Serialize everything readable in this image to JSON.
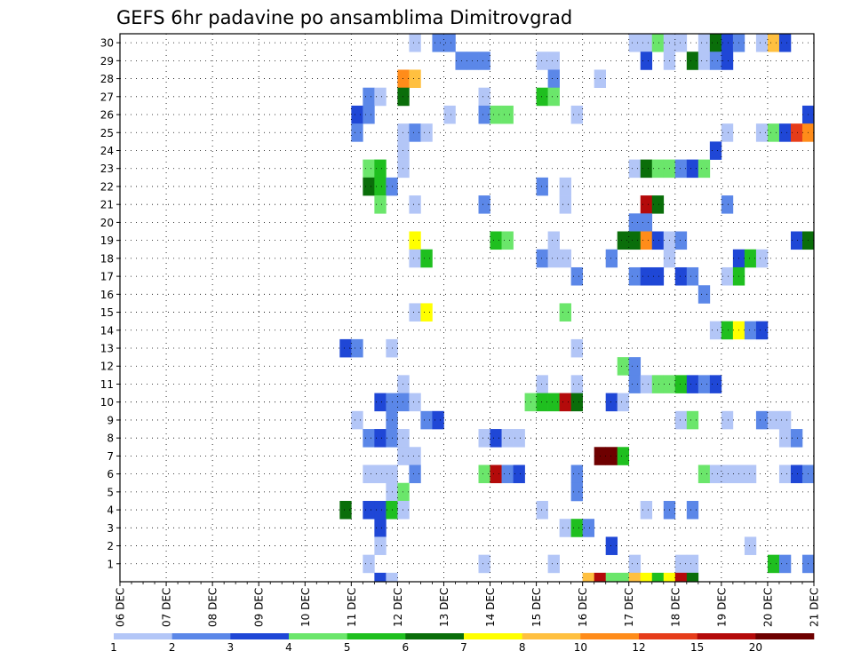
{
  "chart_data": {
    "type": "heatmap",
    "title": "GEFS 6hr padavine po ansamblima Dimitrovgrad",
    "x_labels": [
      "06 DEC",
      "07 DEC",
      "08 DEC",
      "09 DEC",
      "10 DEC",
      "11 DEC",
      "12 DEC",
      "13 DEC",
      "14 DEC",
      "15 DEC",
      "16 DEC",
      "17 DEC",
      "18 DEC",
      "19 DEC",
      "20 DEC",
      "21 DEC"
    ],
    "y_labels": [
      "1",
      "2",
      "3",
      "4",
      "5",
      "6",
      "7",
      "8",
      "9",
      "10",
      "11",
      "12",
      "13",
      "14",
      "15",
      "16",
      "17",
      "18",
      "19",
      "20",
      "21",
      "22",
      "23",
      "24",
      "25",
      "26",
      "27",
      "28",
      "29",
      "30"
    ],
    "colorbar": {
      "labels": [
        "1",
        "2",
        "3",
        "4",
        "5",
        "6",
        "7",
        "8",
        "10",
        "12",
        "15",
        "20"
      ],
      "colors": [
        "#b3c6f7",
        "#5b87e8",
        "#1f47d6",
        "#6be66b",
        "#1fbf1f",
        "#0a6e0a",
        "#ffff00",
        "#ffc040",
        "#ff8c1a",
        "#e63c1a",
        "#b40a0a",
        "#6e0000"
      ]
    },
    "grid": "dotted",
    "cell_step_days": 0.25,
    "cells": [
      {
        "member": 30,
        "day": 12.25,
        "level": 1
      },
      {
        "member": 30,
        "day": 12.75,
        "level": 2
      },
      {
        "member": 30,
        "day": 13.0,
        "level": 2
      },
      {
        "member": 30,
        "day": 17.0,
        "level": 1
      },
      {
        "member": 30,
        "day": 17.25,
        "level": 1
      },
      {
        "member": 30,
        "day": 17.5,
        "level": 4
      },
      {
        "member": 30,
        "day": 17.75,
        "level": 1
      },
      {
        "member": 30,
        "day": 18.0,
        "level": 1
      },
      {
        "member": 30,
        "day": 18.5,
        "level": 1
      },
      {
        "member": 30,
        "day": 18.75,
        "level": 6
      },
      {
        "member": 30,
        "day": 19.0,
        "level": 3
      },
      {
        "member": 30,
        "day": 19.25,
        "level": 2
      },
      {
        "member": 30,
        "day": 19.75,
        "level": 1
      },
      {
        "member": 30,
        "day": 20.0,
        "level": 8
      },
      {
        "member": 30,
        "day": 20.25,
        "level": 3
      },
      {
        "member": 29,
        "day": 13.25,
        "level": 2
      },
      {
        "member": 29,
        "day": 13.5,
        "level": 2
      },
      {
        "member": 29,
        "day": 13.75,
        "level": 2
      },
      {
        "member": 29,
        "day": 15.0,
        "level": 1
      },
      {
        "member": 29,
        "day": 15.25,
        "level": 1
      },
      {
        "member": 29,
        "day": 17.25,
        "level": 3
      },
      {
        "member": 29,
        "day": 17.75,
        "level": 1
      },
      {
        "member": 29,
        "day": 18.25,
        "level": 6
      },
      {
        "member": 29,
        "day": 18.5,
        "level": 1
      },
      {
        "member": 29,
        "day": 18.75,
        "level": 2
      },
      {
        "member": 29,
        "day": 19.0,
        "level": 3
      },
      {
        "member": 28,
        "day": 12.0,
        "level": 9
      },
      {
        "member": 28,
        "day": 12.25,
        "level": 8
      },
      {
        "member": 28,
        "day": 15.25,
        "level": 2
      },
      {
        "member": 28,
        "day": 16.25,
        "level": 1
      },
      {
        "member": 27,
        "day": 11.25,
        "level": 2
      },
      {
        "member": 27,
        "day": 11.5,
        "level": 1
      },
      {
        "member": 27,
        "day": 12.0,
        "level": 6
      },
      {
        "member": 27,
        "day": 13.75,
        "level": 1
      },
      {
        "member": 27,
        "day": 15.0,
        "level": 5
      },
      {
        "member": 27,
        "day": 15.25,
        "level": 4
      },
      {
        "member": 26,
        "day": 11.0,
        "level": 3
      },
      {
        "member": 26,
        "day": 11.25,
        "level": 2
      },
      {
        "member": 26,
        "day": 13.0,
        "level": 1
      },
      {
        "member": 26,
        "day": 13.75,
        "level": 2
      },
      {
        "member": 26,
        "day": 14.0,
        "level": 4
      },
      {
        "member": 26,
        "day": 14.25,
        "level": 4
      },
      {
        "member": 26,
        "day": 15.75,
        "level": 1
      },
      {
        "member": 26,
        "day": 20.75,
        "level": 3
      },
      {
        "member": 25,
        "day": 11.0,
        "level": 2
      },
      {
        "member": 25,
        "day": 12.0,
        "level": 1
      },
      {
        "member": 25,
        "day": 12.25,
        "level": 2
      },
      {
        "member": 25,
        "day": 12.5,
        "level": 1
      },
      {
        "member": 25,
        "day": 19.0,
        "level": 1
      },
      {
        "member": 25,
        "day": 19.75,
        "level": 1
      },
      {
        "member": 25,
        "day": 20.0,
        "level": 4
      },
      {
        "member": 25,
        "day": 20.25,
        "level": 3
      },
      {
        "member": 25,
        "day": 20.5,
        "level": 10
      },
      {
        "member": 25,
        "day": 20.75,
        "level": 9
      },
      {
        "member": 24,
        "day": 12.0,
        "level": 1
      },
      {
        "member": 24,
        "day": 18.75,
        "level": 3
      },
      {
        "member": 23,
        "day": 11.25,
        "level": 4
      },
      {
        "member": 23,
        "day": 11.5,
        "level": 5
      },
      {
        "member": 23,
        "day": 12.0,
        "level": 1
      },
      {
        "member": 23,
        "day": 17.0,
        "level": 1
      },
      {
        "member": 23,
        "day": 17.25,
        "level": 6
      },
      {
        "member": 23,
        "day": 17.5,
        "level": 4
      },
      {
        "member": 23,
        "day": 17.75,
        "level": 4
      },
      {
        "member": 23,
        "day": 18.0,
        "level": 2
      },
      {
        "member": 23,
        "day": 18.25,
        "level": 3
      },
      {
        "member": 23,
        "day": 18.5,
        "level": 4
      },
      {
        "member": 22,
        "day": 11.25,
        "level": 6
      },
      {
        "member": 22,
        "day": 11.5,
        "level": 5
      },
      {
        "member": 22,
        "day": 11.75,
        "level": 2
      },
      {
        "member": 22,
        "day": 15.0,
        "level": 2
      },
      {
        "member": 22,
        "day": 15.5,
        "level": 1
      },
      {
        "member": 21,
        "day": 11.5,
        "level": 4
      },
      {
        "member": 21,
        "day": 12.25,
        "level": 1
      },
      {
        "member": 21,
        "day": 13.75,
        "level": 2
      },
      {
        "member": 21,
        "day": 15.5,
        "level": 1
      },
      {
        "member": 21,
        "day": 17.25,
        "level": 11
      },
      {
        "member": 21,
        "day": 17.5,
        "level": 6
      },
      {
        "member": 21,
        "day": 19.0,
        "level": 2
      },
      {
        "member": 20,
        "day": 17.0,
        "level": 2
      },
      {
        "member": 20,
        "day": 17.25,
        "level": 2
      },
      {
        "member": 19,
        "day": 12.25,
        "level": 7
      },
      {
        "member": 19,
        "day": 14.0,
        "level": 5
      },
      {
        "member": 19,
        "day": 14.25,
        "level": 4
      },
      {
        "member": 19,
        "day": 15.25,
        "level": 1
      },
      {
        "member": 19,
        "day": 16.75,
        "level": 6
      },
      {
        "member": 19,
        "day": 17.0,
        "level": 6
      },
      {
        "member": 19,
        "day": 17.25,
        "level": 9
      },
      {
        "member": 19,
        "day": 17.5,
        "level": 3
      },
      {
        "member": 19,
        "day": 17.75,
        "level": 1
      },
      {
        "member": 19,
        "day": 18.0,
        "level": 2
      },
      {
        "member": 19,
        "day": 20.5,
        "level": 3
      },
      {
        "member": 19,
        "day": 20.75,
        "level": 6
      },
      {
        "member": 18,
        "day": 12.25,
        "level": 1
      },
      {
        "member": 18,
        "day": 12.5,
        "level": 5
      },
      {
        "member": 18,
        "day": 15.0,
        "level": 2
      },
      {
        "member": 18,
        "day": 15.25,
        "level": 1
      },
      {
        "member": 18,
        "day": 15.5,
        "level": 1
      },
      {
        "member": 18,
        "day": 16.5,
        "level": 2
      },
      {
        "member": 18,
        "day": 17.75,
        "level": 1
      },
      {
        "member": 18,
        "day": 19.25,
        "level": 3
      },
      {
        "member": 18,
        "day": 19.5,
        "level": 5
      },
      {
        "member": 18,
        "day": 19.75,
        "level": 1
      },
      {
        "member": 17,
        "day": 15.75,
        "level": 2
      },
      {
        "member": 17,
        "day": 17.0,
        "level": 2
      },
      {
        "member": 17,
        "day": 17.25,
        "level": 3
      },
      {
        "member": 17,
        "day": 17.5,
        "level": 3
      },
      {
        "member": 17,
        "day": 18.0,
        "level": 3
      },
      {
        "member": 17,
        "day": 18.25,
        "level": 2
      },
      {
        "member": 17,
        "day": 19.0,
        "level": 1
      },
      {
        "member": 17,
        "day": 19.25,
        "level": 5
      },
      {
        "member": 16,
        "day": 18.5,
        "level": 2
      },
      {
        "member": 15,
        "day": 12.25,
        "level": 1
      },
      {
        "member": 15,
        "day": 12.5,
        "level": 7
      },
      {
        "member": 15,
        "day": 15.5,
        "level": 4
      },
      {
        "member": 14,
        "day": 18.75,
        "level": 1
      },
      {
        "member": 14,
        "day": 19.0,
        "level": 5
      },
      {
        "member": 14,
        "day": 19.25,
        "level": 7
      },
      {
        "member": 14,
        "day": 19.5,
        "level": 2
      },
      {
        "member": 14,
        "day": 19.75,
        "level": 3
      },
      {
        "member": 13,
        "day": 10.75,
        "level": 3
      },
      {
        "member": 13,
        "day": 11.0,
        "level": 2
      },
      {
        "member": 13,
        "day": 11.75,
        "level": 1
      },
      {
        "member": 13,
        "day": 15.75,
        "level": 1
      },
      {
        "member": 12,
        "day": 16.75,
        "level": 4
      },
      {
        "member": 12,
        "day": 17.0,
        "level": 2
      },
      {
        "member": 11,
        "day": 12.0,
        "level": 1
      },
      {
        "member": 11,
        "day": 15.0,
        "level": 1
      },
      {
        "member": 11,
        "day": 15.75,
        "level": 1
      },
      {
        "member": 11,
        "day": 17.0,
        "level": 2
      },
      {
        "member": 11,
        "day": 17.25,
        "level": 1
      },
      {
        "member": 11,
        "day": 17.5,
        "level": 4
      },
      {
        "member": 11,
        "day": 17.75,
        "level": 4
      },
      {
        "member": 11,
        "day": 18.0,
        "level": 5
      },
      {
        "member": 11,
        "day": 18.25,
        "level": 3
      },
      {
        "member": 11,
        "day": 18.5,
        "level": 2
      },
      {
        "member": 11,
        "day": 18.75,
        "level": 3
      },
      {
        "member": 10,
        "day": 11.5,
        "level": 3
      },
      {
        "member": 10,
        "day": 11.75,
        "level": 2
      },
      {
        "member": 10,
        "day": 12.0,
        "level": 2
      },
      {
        "member": 10,
        "day": 12.25,
        "level": 1
      },
      {
        "member": 10,
        "day": 14.75,
        "level": 4
      },
      {
        "member": 10,
        "day": 15.0,
        "level": 5
      },
      {
        "member": 10,
        "day": 15.25,
        "level": 5
      },
      {
        "member": 10,
        "day": 15.5,
        "level": 11
      },
      {
        "member": 10,
        "day": 15.75,
        "level": 6
      },
      {
        "member": 10,
        "day": 16.5,
        "level": 3
      },
      {
        "member": 10,
        "day": 16.75,
        "level": 1
      },
      {
        "member": 9,
        "day": 11.0,
        "level": 1
      },
      {
        "member": 9,
        "day": 11.75,
        "level": 2
      },
      {
        "member": 9,
        "day": 12.5,
        "level": 2
      },
      {
        "member": 9,
        "day": 12.75,
        "level": 3
      },
      {
        "member": 9,
        "day": 18.0,
        "level": 1
      },
      {
        "member": 9,
        "day": 18.25,
        "level": 4
      },
      {
        "member": 9,
        "day": 19.0,
        "level": 1
      },
      {
        "member": 9,
        "day": 19.75,
        "level": 2
      },
      {
        "member": 9,
        "day": 20.0,
        "level": 1
      },
      {
        "member": 9,
        "day": 20.25,
        "level": 1
      },
      {
        "member": 8,
        "day": 11.25,
        "level": 2
      },
      {
        "member": 8,
        "day": 11.5,
        "level": 3
      },
      {
        "member": 8,
        "day": 11.75,
        "level": 2
      },
      {
        "member": 8,
        "day": 12.0,
        "level": 1
      },
      {
        "member": 8,
        "day": 13.75,
        "level": 1
      },
      {
        "member": 8,
        "day": 14.0,
        "level": 3
      },
      {
        "member": 8,
        "day": 14.25,
        "level": 1
      },
      {
        "member": 8,
        "day": 14.5,
        "level": 1
      },
      {
        "member": 8,
        "day": 20.25,
        "level": 1
      },
      {
        "member": 8,
        "day": 20.5,
        "level": 2
      },
      {
        "member": 7,
        "day": 12.0,
        "level": 1
      },
      {
        "member": 7,
        "day": 12.25,
        "level": 1
      },
      {
        "member": 7,
        "day": 16.25,
        "level": 12
      },
      {
        "member": 7,
        "day": 16.5,
        "level": 12
      },
      {
        "member": 7,
        "day": 16.75,
        "level": 5
      },
      {
        "member": 6,
        "day": 11.25,
        "level": 1
      },
      {
        "member": 6,
        "day": 11.5,
        "level": 1
      },
      {
        "member": 6,
        "day": 11.75,
        "level": 1
      },
      {
        "member": 6,
        "day": 12.25,
        "level": 2
      },
      {
        "member": 6,
        "day": 13.75,
        "level": 4
      },
      {
        "member": 6,
        "day": 14.0,
        "level": 11
      },
      {
        "member": 6,
        "day": 14.25,
        "level": 2
      },
      {
        "member": 6,
        "day": 14.5,
        "level": 3
      },
      {
        "member": 6,
        "day": 15.75,
        "level": 2
      },
      {
        "member": 6,
        "day": 18.5,
        "level": 4
      },
      {
        "member": 6,
        "day": 18.75,
        "level": 1
      },
      {
        "member": 6,
        "day": 19.0,
        "level": 1
      },
      {
        "member": 6,
        "day": 19.25,
        "level": 1
      },
      {
        "member": 6,
        "day": 19.5,
        "level": 1
      },
      {
        "member": 6,
        "day": 20.25,
        "level": 1
      },
      {
        "member": 6,
        "day": 20.5,
        "level": 3
      },
      {
        "member": 6,
        "day": 20.75,
        "level": 2
      },
      {
        "member": 5,
        "day": 11.75,
        "level": 1
      },
      {
        "member": 5,
        "day": 12.0,
        "level": 4
      },
      {
        "member": 5,
        "day": 15.75,
        "level": 2
      },
      {
        "member": 4,
        "day": 10.75,
        "level": 6
      },
      {
        "member": 4,
        "day": 11.25,
        "level": 3
      },
      {
        "member": 4,
        "day": 11.5,
        "level": 3
      },
      {
        "member": 4,
        "day": 11.75,
        "level": 5
      },
      {
        "member": 4,
        "day": 12.0,
        "level": 1
      },
      {
        "member": 4,
        "day": 15.0,
        "level": 1
      },
      {
        "member": 4,
        "day": 17.25,
        "level": 1
      },
      {
        "member": 4,
        "day": 17.75,
        "level": 2
      },
      {
        "member": 4,
        "day": 18.25,
        "level": 2
      },
      {
        "member": 3,
        "day": 11.5,
        "level": 3
      },
      {
        "member": 3,
        "day": 15.5,
        "level": 1
      },
      {
        "member": 3,
        "day": 15.75,
        "level": 5
      },
      {
        "member": 3,
        "day": 16.0,
        "level": 2
      },
      {
        "member": 2,
        "day": 11.5,
        "level": 1
      },
      {
        "member": 2,
        "day": 16.5,
        "level": 3
      },
      {
        "member": 2,
        "day": 19.5,
        "level": 1
      },
      {
        "member": 1,
        "day": 11.25,
        "level": 1
      },
      {
        "member": 1,
        "day": 13.75,
        "level": 1
      },
      {
        "member": 1,
        "day": 15.25,
        "level": 1
      },
      {
        "member": 1,
        "day": 17.0,
        "level": 1
      },
      {
        "member": 1,
        "day": 18.0,
        "level": 1
      },
      {
        "member": 1,
        "day": 18.25,
        "level": 1
      },
      {
        "member": 1,
        "day": 20.0,
        "level": 5
      },
      {
        "member": 1,
        "day": 20.25,
        "level": 2
      },
      {
        "member": 1,
        "day": 20.75,
        "level": 2
      }
    ],
    "bottom_strip": [
      {
        "day": 11.5,
        "level": 3
      },
      {
        "day": 11.75,
        "level": 1
      },
      {
        "day": 16.0,
        "level": 8
      },
      {
        "day": 16.25,
        "level": 11
      },
      {
        "day": 16.5,
        "level": 4
      },
      {
        "day": 16.75,
        "level": 4
      },
      {
        "day": 17.0,
        "level": 8
      },
      {
        "day": 17.25,
        "level": 7
      },
      {
        "day": 17.5,
        "level": 5
      },
      {
        "day": 17.75,
        "level": 7
      },
      {
        "day": 18.0,
        "level": 11
      },
      {
        "day": 18.25,
        "level": 6
      }
    ]
  }
}
